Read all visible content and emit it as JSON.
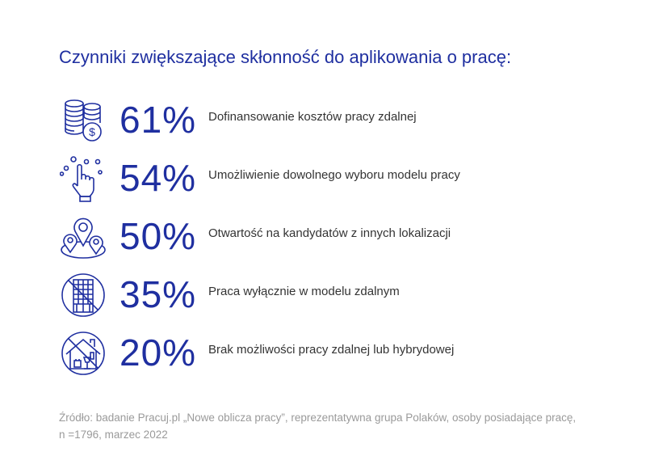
{
  "title": "Czynniki zwiększające skłonność do aplikowania o pracę:",
  "accent_color": "#1f2fa0",
  "chart_data": {
    "type": "table",
    "title": "Czynniki zwiększające skłonność do aplikowania o pracę:",
    "rows": [
      {
        "value": 61,
        "value_label": "61%",
        "label": "Dofinansowanie kosztów pracy zdalnej",
        "icon": "coins-dollar-icon"
      },
      {
        "value": 54,
        "value_label": "54%",
        "label": "Umożliwienie dowolnego wyboru modelu pracy",
        "icon": "pointing-hand-icon"
      },
      {
        "value": 50,
        "value_label": "50%",
        "label": "Otwartość na kandydatów z innych lokalizacji",
        "icon": "location-pins-icon"
      },
      {
        "value": 35,
        "value_label": "35%",
        "label": "Praca wyłącznie w modelu zdalnym",
        "icon": "no-office-building-icon"
      },
      {
        "value": 20,
        "value_label": "20%",
        "label": "Brak możliwości pracy zdalnej lub hybrydowej",
        "icon": "no-home-office-icon"
      }
    ]
  },
  "source": {
    "line1": "Źródło: badanie Pracuj.pl „Nowe oblicza pracy”, reprezentatywna grupa Polaków, osoby posiadające pracę,",
    "line2": "n =1796, marzec 2022"
  }
}
